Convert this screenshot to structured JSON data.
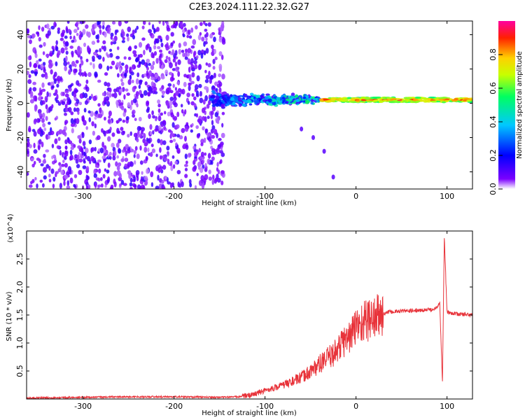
{
  "title": "C2E3.2024.111.22.32.G27",
  "chart_data": [
    {
      "type": "heatmap",
      "title": "C2E3.2024.111.22.32.G27",
      "xlabel": "Height of straight line (km)",
      "ylabel": "Frequency (Hz)",
      "xlim": [
        -362,
        128
      ],
      "ylim": [
        -50,
        48
      ],
      "x_ticks": [
        -300,
        -200,
        -100,
        0,
        100
      ],
      "y_ticks": [
        -40,
        -20,
        0,
        20,
        40
      ],
      "colorbar": {
        "label": "Normalized spectral amplitude",
        "range": [
          0,
          1
        ],
        "ticks": [
          "0.0",
          "0.2",
          "0.4",
          "0.6",
          "0.8"
        ],
        "colormap": [
          "#ffffff",
          "#7b00ff",
          "#0000ff",
          "#00c8ff",
          "#00ff60",
          "#c8ff00",
          "#ffd000",
          "#ff2000",
          "#ff00a0"
        ]
      },
      "features": [
        {
          "segment": "noise",
          "x_range": [
            -362,
            -145
          ],
          "freq_range": [
            -50,
            48
          ],
          "amplitude": 0.1
        },
        {
          "segment": "signal-onset",
          "x_range": [
            -160,
            -40
          ],
          "freq_center": 2,
          "freq_spread": 10,
          "amplitude": 0.4
        },
        {
          "segment": "signal-line",
          "x_range": [
            -40,
            128
          ],
          "freq_center": 2,
          "freq_spread": 2,
          "amplitude": 0.85
        },
        {
          "segment": "diagonal-tail",
          "points": [
            [
              -60,
              -15
            ],
            [
              -47,
              -20
            ],
            [
              -35,
              -28
            ],
            [
              -25,
              -43
            ]
          ]
        }
      ]
    },
    {
      "type": "line",
      "xlabel": "Height of straight line (km)",
      "ylabel": "SNR (10 * v/v)",
      "multiplier_label": "(x10^4)",
      "xlim": [
        -362,
        128
      ],
      "ylim": [
        0,
        3.0
      ],
      "x_ticks": [
        -300,
        -200,
        -100,
        0,
        100
      ],
      "y_ticks": [
        "0.5",
        "1.0",
        "1.5",
        "2.0",
        "2.5"
      ],
      "color": "#e8333a",
      "x": [
        -362,
        -300,
        -250,
        -200,
        -150,
        -130,
        -115,
        -100,
        -80,
        -60,
        -40,
        -25,
        -15,
        -5,
        0,
        10,
        25,
        35,
        50,
        70,
        85,
        92,
        95,
        97,
        100,
        110,
        128
      ],
      "y": [
        0.02,
        0.03,
        0.04,
        0.04,
        0.03,
        0.04,
        0.07,
        0.15,
        0.25,
        0.38,
        0.62,
        0.8,
        1.0,
        1.15,
        1.3,
        1.4,
        1.48,
        1.55,
        1.57,
        1.58,
        1.6,
        1.7,
        0.3,
        2.9,
        1.55,
        1.52,
        1.5
      ]
    }
  ]
}
